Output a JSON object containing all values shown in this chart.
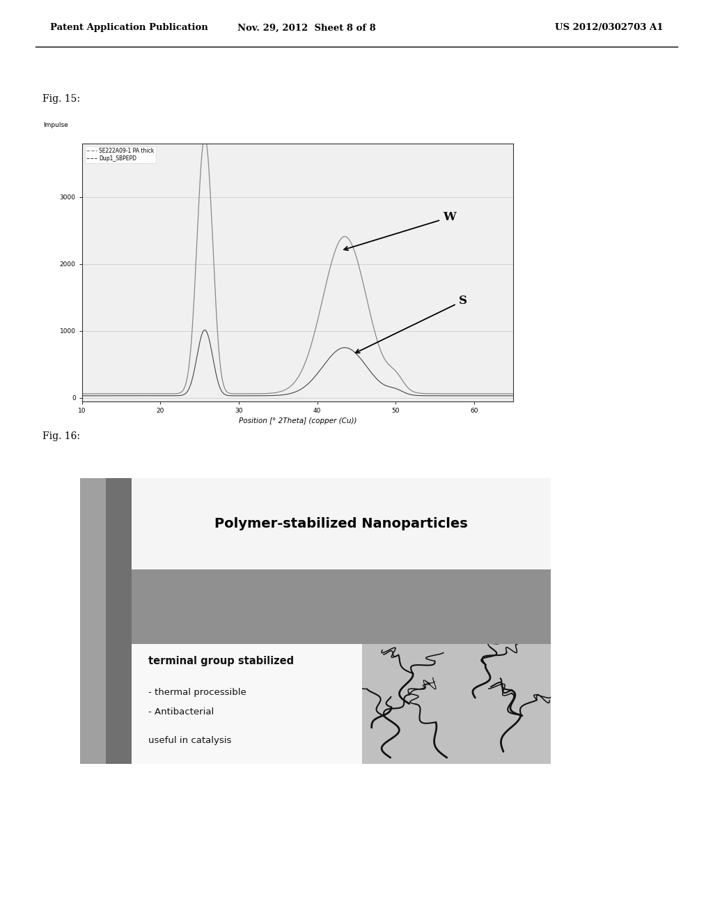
{
  "header_left": "Patent Application Publication",
  "header_mid": "Nov. 29, 2012  Sheet 8 of 8",
  "header_right": "US 2012/0302703 A1",
  "fig15_label": "Fig. 15:",
  "fig16_label": "Fig. 16:",
  "background": "#ffffff",
  "chart_ylabel_text": "Impulse",
  "xlabel": "Position [° 2Theta] (copper (Cu))",
  "legend1": "SE222A09-1 PA thick",
  "legend2": "Dup1_SBPEPD",
  "curve1_color": "#888888",
  "curve2_color": "#444444",
  "W_label": "W",
  "S_label": "S",
  "fig16_title": "Polymer-stabilized Nanoparticles",
  "fig16_line1": "terminal group stabilized",
  "fig16_line2": "- thermal processible",
  "fig16_line3": "- Antibacterial",
  "fig16_line4": "useful in catalysis",
  "fig16_outer_bg": "#808080",
  "fig16_strip1": "#a0a0a0",
  "fig16_strip2": "#707070",
  "fig16_title_bg": "#f0f0f0",
  "fig16_body_bg": "#ffffff",
  "fig16_mid_bg": "#909090",
  "fig16_img_bg": "#c0c0c0"
}
